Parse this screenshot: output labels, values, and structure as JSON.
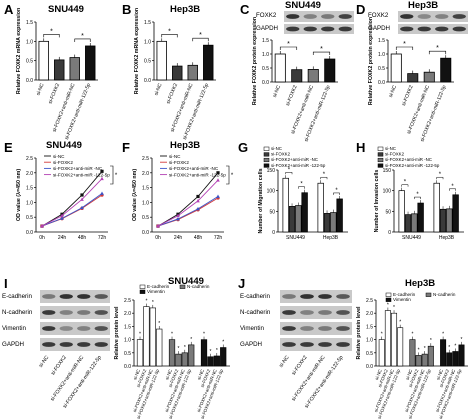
{
  "figure": {
    "panels": {
      "A": {
        "letter": "A",
        "title": "SNU449",
        "ylabel": "Relative FOXK2 mRNA expression"
      },
      "B": {
        "letter": "B",
        "title": "Hep3B",
        "ylabel": "Relative FOXK2 mRNA expression"
      },
      "C": {
        "letter": "C",
        "title": "SNU449",
        "ylabel": "Relative FOXK2 protein expression",
        "blot_labels": [
          "FOXK2",
          "GAPDH"
        ]
      },
      "D": {
        "letter": "D",
        "title": "Hep3B",
        "ylabel": "Relative FOXK2 protein expression",
        "blot_labels": [
          "FOXK2",
          "GAPDH"
        ]
      },
      "E": {
        "letter": "E",
        "title": "SNU449",
        "ylabel": "OD value (λ=450 nm)"
      },
      "F": {
        "letter": "F",
        "title": "Hep3B",
        "ylabel": "OD value (λ=450 nm)"
      },
      "G": {
        "letter": "G",
        "ylabel": "Number of Migration cells"
      },
      "H": {
        "letter": "H",
        "ylabel": "Number of Invasion cells"
      },
      "I": {
        "letter": "I",
        "title": "SNU449",
        "ylabel": "Relative protein level",
        "blot_labels": [
          "E-cadherin",
          "N-cadherin",
          "Vimentin",
          "GAPDH"
        ]
      },
      "J": {
        "letter": "J",
        "title": "Hep3B",
        "ylabel": "Relative protein level",
        "blot_labels": [
          "E-cadherin",
          "N-cadherin",
          "Vimentin",
          "GAPDH"
        ]
      }
    },
    "group_labels": [
      "si-NC",
      "si-FOXK2",
      "si-FOXK2+anti-miR-NC",
      "si-FOXK2+anti-miR-122-5p"
    ],
    "group_fills": [
      "#ffffff",
      "#3a3a3a",
      "#7a7a7a",
      "#111111"
    ],
    "significance_mark": "*",
    "line_colors": [
      "#111111",
      "#d23a3a",
      "#3a55c9",
      "#b340b3"
    ]
  },
  "chart_data": [
    {
      "id": "A",
      "type": "bar",
      "title": "SNU449",
      "ylabel": "Relative FOXK2 mRNA expression",
      "categories": [
        "si-NC",
        "si-FOXK2",
        "si-FOXK2+anti-miR-NC",
        "si-FOXK2+anti-miR-122-5p"
      ],
      "values": [
        1.0,
        0.52,
        0.58,
        0.88
      ],
      "ylim": [
        0,
        1.5
      ],
      "yticks": [
        "0.0",
        "0.5",
        "1.0",
        "1.5"
      ]
    },
    {
      "id": "B",
      "type": "bar",
      "title": "Hep3B",
      "ylabel": "Relative FOXK2 mRNA expression",
      "categories": [
        "si-NC",
        "si-FOXK2",
        "si-FOXK2+anti-miR-NC",
        "si-FOXK2+anti-miR-122-5p"
      ],
      "values": [
        1.0,
        0.36,
        0.38,
        0.9
      ],
      "ylim": [
        0,
        1.5
      ],
      "yticks": [
        "0.0",
        "0.5",
        "1.0",
        "1.5"
      ]
    },
    {
      "id": "C",
      "type": "bar",
      "title": "SNU449",
      "ylabel": "Relative FOXK2 protein expression",
      "categories": [
        "si-NC",
        "si-FOXK2",
        "si-FOXK2+anti-miR-NC",
        "si-FOXK2+anti-miR-122-5p"
      ],
      "values": [
        1.0,
        0.44,
        0.45,
        0.82
      ],
      "ylim": [
        0,
        1.5
      ],
      "yticks": [
        "0.0",
        "0.5",
        "1.0",
        "1.5"
      ]
    },
    {
      "id": "D",
      "type": "bar",
      "title": "Hep3B",
      "ylabel": "Relative FOXK2 protein expression",
      "categories": [
        "si-NC",
        "si-FOXK2",
        "si-FOXK2+anti-miR-NC",
        "si-FOXK2+anti-miR-122-5p"
      ],
      "values": [
        1.0,
        0.3,
        0.35,
        0.85
      ],
      "ylim": [
        0,
        1.5
      ],
      "yticks": [
        "0.0",
        "0.5",
        "1.0",
        "1.5"
      ]
    },
    {
      "id": "E",
      "type": "line",
      "title": "SNU449",
      "ylabel": "OD value (λ=450 nm)",
      "x": [
        "0h",
        "24h",
        "48h",
        "72h"
      ],
      "ylim": [
        0,
        2.5
      ],
      "yticks": [
        "0.0",
        "0.5",
        "1.0",
        "1.5",
        "2.0",
        "2.5"
      ],
      "series": [
        {
          "name": "si-NC",
          "values": [
            0.2,
            0.6,
            1.25,
            2.05
          ]
        },
        {
          "name": "si-FOXK2",
          "values": [
            0.2,
            0.45,
            0.8,
            1.25
          ]
        },
        {
          "name": "si-FOXK2+anti-miR -NC",
          "values": [
            0.2,
            0.46,
            0.82,
            1.3
          ]
        },
        {
          "name": "si-FOXK2+anti-miR -122-5p",
          "values": [
            0.2,
            0.55,
            1.1,
            1.8
          ]
        }
      ]
    },
    {
      "id": "F",
      "type": "line",
      "title": "Hep3B",
      "ylabel": "OD value (λ=450 nm)",
      "x": [
        "0h",
        "24h",
        "48h",
        "72h"
      ],
      "ylim": [
        0,
        2.5
      ],
      "yticks": [
        "0.0",
        "0.5",
        "1.0",
        "1.5",
        "2.0",
        "2.5"
      ],
      "series": [
        {
          "name": "si-NC",
          "values": [
            0.2,
            0.6,
            1.2,
            2.0
          ]
        },
        {
          "name": "si-FOXK2",
          "values": [
            0.2,
            0.42,
            0.75,
            1.15
          ]
        },
        {
          "name": "si-FOXK2+anti-miR -NC",
          "values": [
            0.2,
            0.44,
            0.78,
            1.2
          ]
        },
        {
          "name": "si-FOXK2+anti-miR -122-5p",
          "values": [
            0.2,
            0.55,
            1.05,
            1.75
          ]
        }
      ]
    },
    {
      "id": "G",
      "type": "bar",
      "ylabel": "Number of Migration cells",
      "categories": [
        "SNU449",
        "Hep3B"
      ],
      "ylim": [
        0,
        150
      ],
      "yticks": [
        "0",
        "50",
        "100",
        "150"
      ],
      "series": [
        {
          "name": "si-NC",
          "values": [
            130,
            118
          ]
        },
        {
          "name": "si-FOXK2",
          "values": [
            62,
            45
          ]
        },
        {
          "name": "si-FOXK2+anti-miR -NC",
          "values": [
            64,
            47
          ]
        },
        {
          "name": "si-FOXK2+anti-miR -122-5p",
          "values": [
            95,
            80
          ]
        }
      ]
    },
    {
      "id": "H",
      "type": "bar",
      "ylabel": "Number of Invasion cells",
      "categories": [
        "SNU449",
        "Hep3B"
      ],
      "ylim": [
        0,
        150
      ],
      "yticks": [
        "0",
        "50",
        "100",
        "150"
      ],
      "series": [
        {
          "name": "si-NC",
          "values": [
            100,
            118
          ]
        },
        {
          "name": "si-FOXK2",
          "values": [
            42,
            55
          ]
        },
        {
          "name": "si-FOXK2+anti-miR -NC",
          "values": [
            44,
            56
          ]
        },
        {
          "name": "si-FOXK2+anti-miR -122-5p",
          "values": [
            70,
            90
          ]
        }
      ]
    },
    {
      "id": "I",
      "type": "bar",
      "title": "SNU449",
      "ylabel": "Relative protein level",
      "categories": [
        "E-cadherin",
        "N-cadherin",
        "Vimentin"
      ],
      "ylim": [
        0,
        2.5
      ],
      "yticks": [
        "0.0",
        "0.5",
        "1.0",
        "1.5",
        "2.0",
        "2.5"
      ],
      "series": [
        {
          "name": "si-NC",
          "values": [
            1.0,
            1.0,
            1.0
          ]
        },
        {
          "name": "si-FOXK2",
          "values": [
            2.25,
            0.45,
            0.35
          ]
        },
        {
          "name": "si-FOXK2+anti-miR-NC",
          "values": [
            2.2,
            0.5,
            0.38
          ]
        },
        {
          "name": "si-FOXK2+anti-miR-122-5p",
          "values": [
            1.4,
            0.8,
            0.7
          ]
        }
      ]
    },
    {
      "id": "J",
      "type": "bar",
      "title": "Hep3B",
      "ylabel": "Relative protein level",
      "categories": [
        "E-cadherin",
        "N-cadherin",
        "Vimentin"
      ],
      "ylim": [
        0,
        2.5
      ],
      "yticks": [
        "0.0",
        "0.5",
        "1.0",
        "1.5",
        "2.0",
        "2.5"
      ],
      "series": [
        {
          "name": "si-NC",
          "values": [
            1.0,
            1.0,
            1.0
          ]
        },
        {
          "name": "si-FOXK2",
          "values": [
            2.1,
            0.4,
            0.5
          ]
        },
        {
          "name": "si-FOXK2+anti-miR-NC",
          "values": [
            2.0,
            0.45,
            0.55
          ]
        },
        {
          "name": "si-FOXK2+anti-miR-122-5p",
          "values": [
            1.45,
            0.75,
            0.8
          ]
        }
      ]
    }
  ],
  "legends": {
    "lines": [
      "si-NC",
      "si-FOXK2",
      "si-FOXK2+anti-miR -NC",
      "si-FOXK2+anti-miR -122-5p"
    ],
    "gh": [
      "si-NC",
      "si-FOXK2",
      "si-FOXK2+anti-miR -NC",
      "si-FOXK2+anti-miR -122-5p"
    ],
    "ij": [
      "E-cadherin",
      "N-cadherin",
      "Vimentin"
    ]
  }
}
